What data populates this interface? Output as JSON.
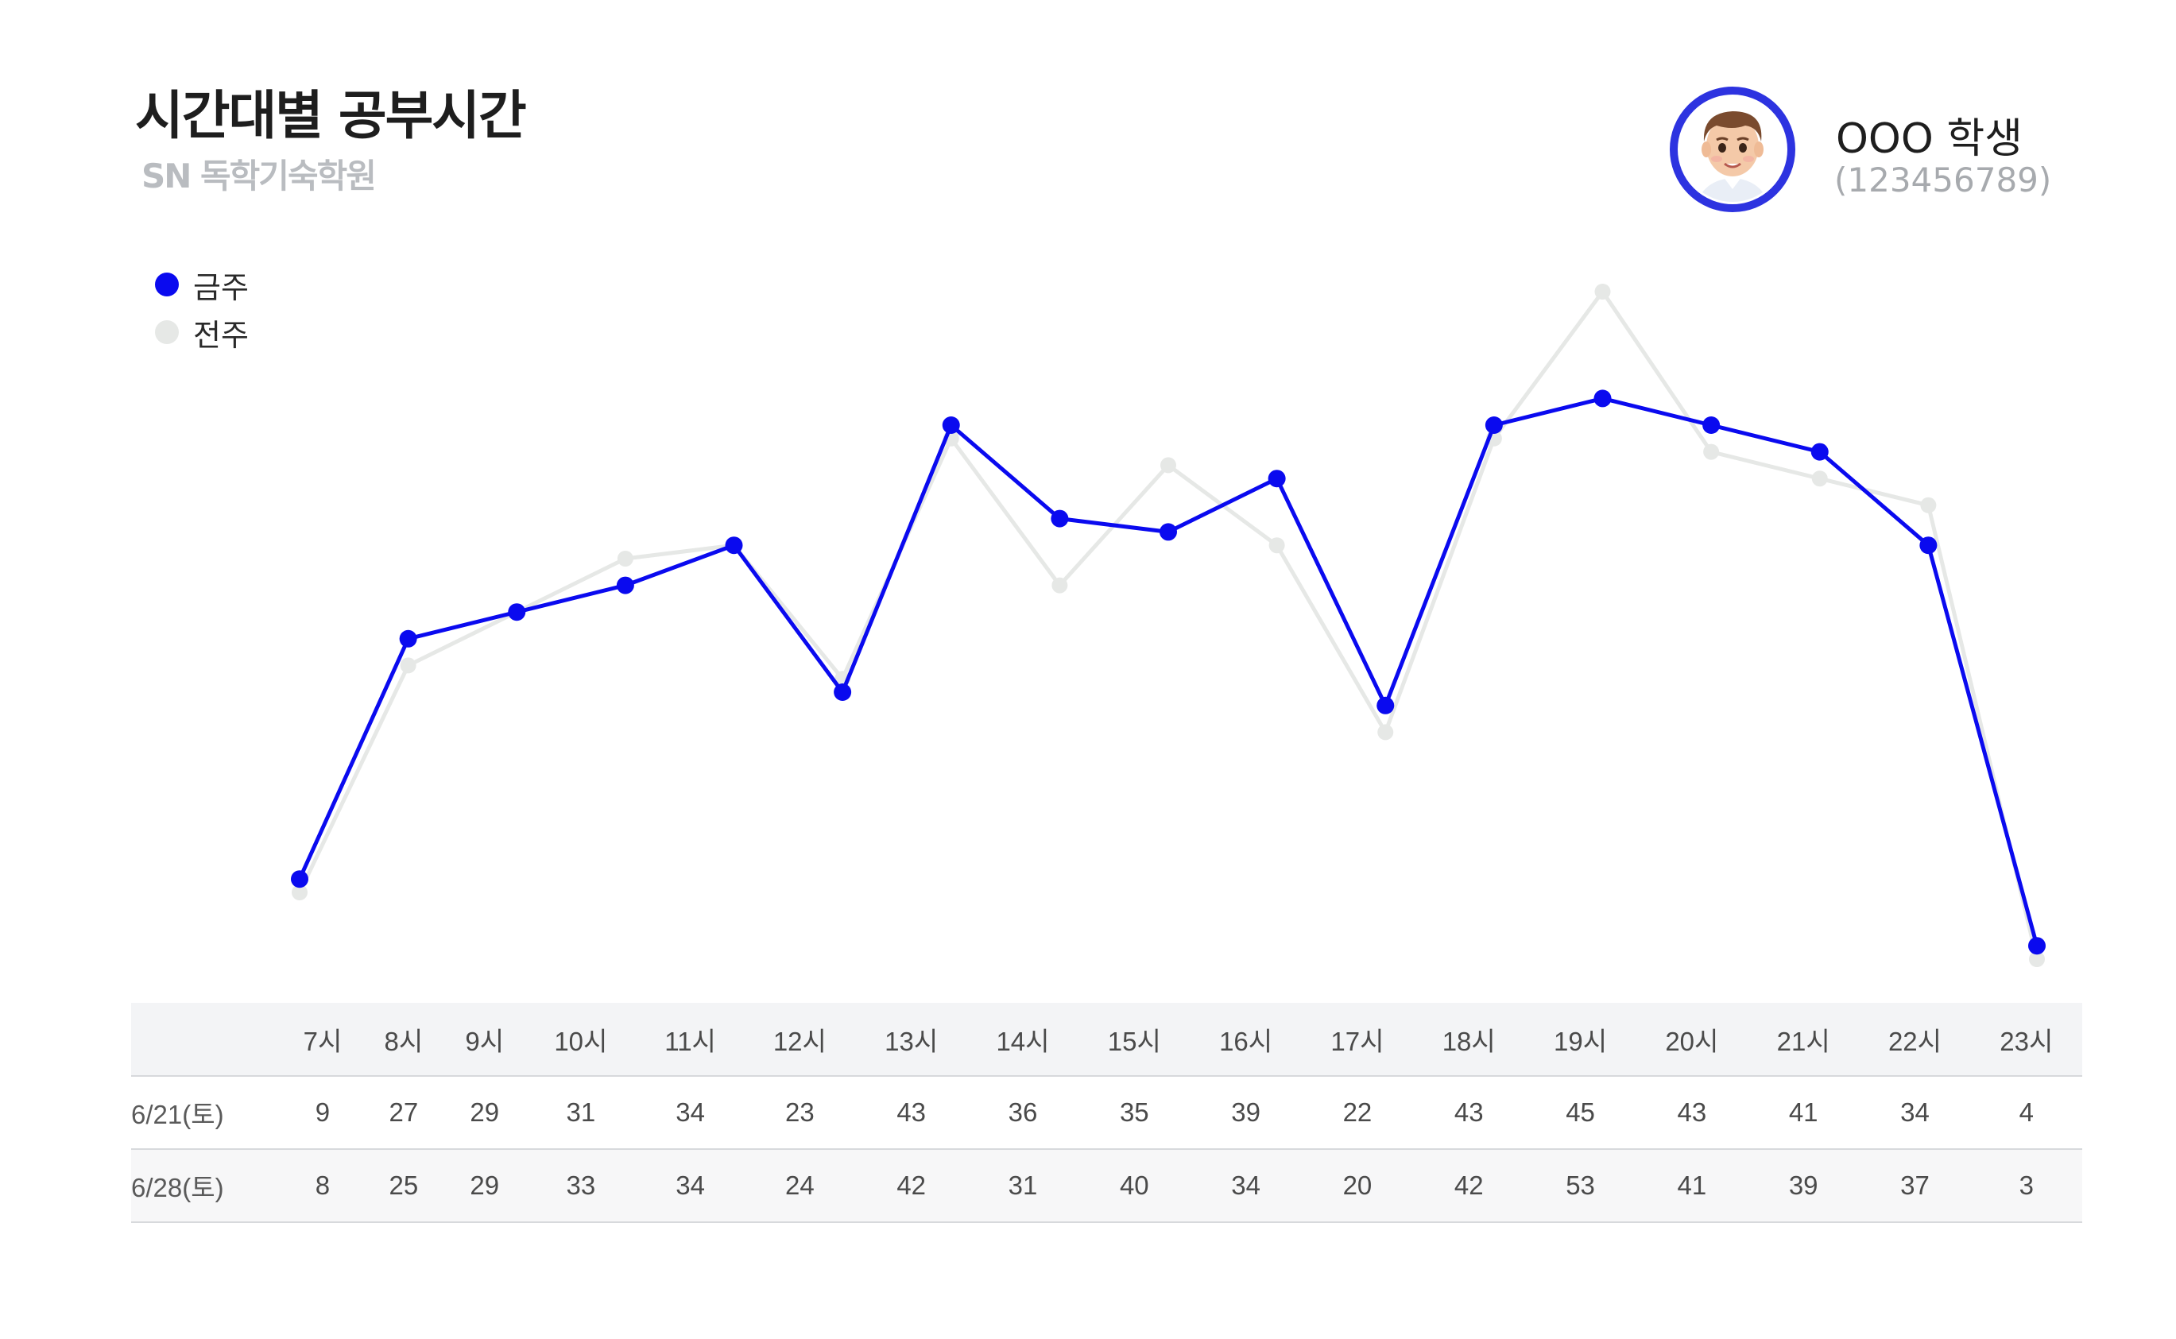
{
  "header": {
    "title": "시간대별 공부시간",
    "brand": "SN 독학기숙학원"
  },
  "student": {
    "name": "OOO 학생",
    "id": "(123456789)"
  },
  "colors": {
    "this_week": "#0a0aef",
    "last_week": "#e6e8e6"
  },
  "chart_data": {
    "type": "line",
    "title": "시간대별 공부시간",
    "categories": [
      "7시",
      "8시",
      "9시",
      "10시",
      "11시",
      "12시",
      "13시",
      "14시",
      "15시",
      "16시",
      "17시",
      "18시",
      "19시",
      "20시",
      "21시",
      "22시",
      "23시"
    ],
    "series": [
      {
        "name": "금주",
        "values": [
          9,
          27,
          29,
          31,
          34,
          23,
          43,
          36,
          35,
          39,
          22,
          43,
          45,
          43,
          41,
          34,
          4
        ],
        "color": "#0a0aef"
      },
      {
        "name": "전주",
        "values": [
          8,
          25,
          29,
          33,
          34,
          24,
          42,
          31,
          40,
          34,
          20,
          42,
          53,
          41,
          39,
          37,
          3
        ],
        "color": "#e6e8e6"
      }
    ],
    "legend": "top-left",
    "grid": false
  },
  "table": {
    "header_label": "",
    "rows": [
      {
        "label": "6/21(토)",
        "values": [
          9,
          27,
          29,
          31,
          34,
          23,
          43,
          36,
          35,
          39,
          22,
          43,
          45,
          43,
          41,
          34,
          4
        ]
      },
      {
        "label": "6/28(토)",
        "values": [
          8,
          25,
          29,
          33,
          34,
          24,
          42,
          31,
          40,
          34,
          20,
          42,
          53,
          41,
          39,
          37,
          3
        ]
      }
    ]
  }
}
